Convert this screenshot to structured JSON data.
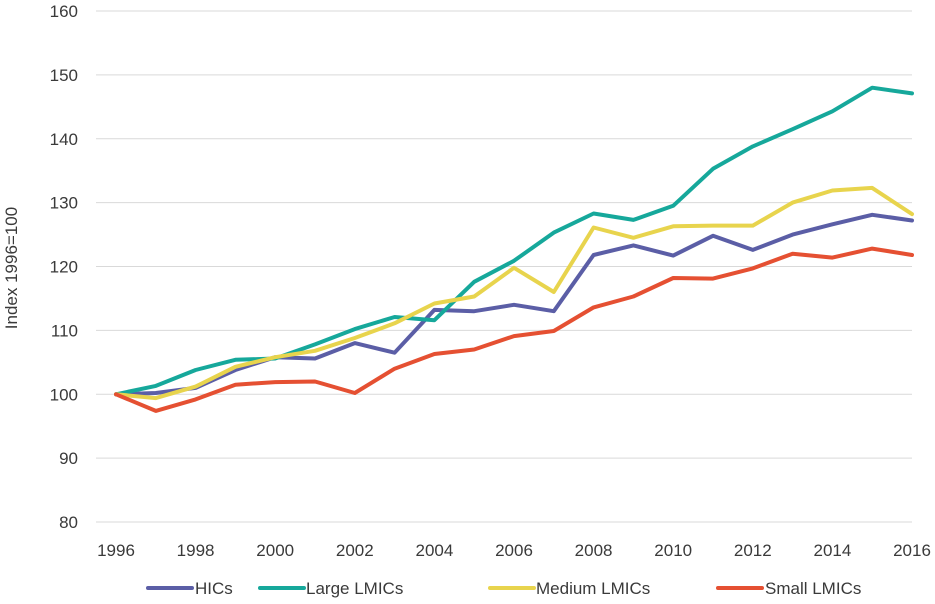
{
  "chart_data": {
    "type": "line",
    "title": "",
    "xlabel": "",
    "ylabel": "Index 1996=100",
    "ylim": [
      80,
      160
    ],
    "xlim": [
      1996,
      2016
    ],
    "grid": true,
    "legend_position": "bottom",
    "x": [
      1996,
      1997,
      1998,
      1999,
      2000,
      2001,
      2002,
      2003,
      2004,
      2005,
      2006,
      2007,
      2008,
      2009,
      2010,
      2011,
      2012,
      2013,
      2014,
      2015,
      2016
    ],
    "x_ticks": [
      1996,
      1998,
      2000,
      2002,
      2004,
      2006,
      2008,
      2010,
      2012,
      2014,
      2016
    ],
    "y_ticks": [
      80,
      90,
      100,
      110,
      120,
      130,
      140,
      150,
      160
    ],
    "series": [
      {
        "name": "HICs",
        "color": "#5b5ea6",
        "values": [
          100,
          100.2,
          101.0,
          103.8,
          105.8,
          105.6,
          108.0,
          106.5,
          113.2,
          113.0,
          114.0,
          113.0,
          121.8,
          123.3,
          121.7,
          124.8,
          122.6,
          125.0,
          126.6,
          128.1,
          127.2
        ]
      },
      {
        "name": "Large LMICs",
        "color": "#16a89b",
        "values": [
          100,
          101.3,
          103.8,
          105.4,
          105.6,
          107.8,
          110.2,
          112.1,
          111.6,
          117.6,
          120.9,
          125.3,
          128.3,
          127.3,
          129.5,
          135.3,
          138.8,
          141.5,
          144.3,
          148.0,
          147.1
        ]
      },
      {
        "name": "Medium LMICs",
        "color": "#e8d44d",
        "values": [
          100,
          99.4,
          101.2,
          104.3,
          105.8,
          106.8,
          108.8,
          111.1,
          114.2,
          115.3,
          119.8,
          116.0,
          126.1,
          124.5,
          126.3,
          126.4,
          126.4,
          130.0,
          131.9,
          132.3,
          128.2
        ]
      },
      {
        "name": "Small LMICs",
        "color": "#e55032",
        "values": [
          100,
          97.4,
          99.2,
          101.5,
          101.9,
          102.0,
          100.2,
          104.0,
          106.3,
          107.0,
          109.1,
          109.9,
          113.6,
          115.3,
          118.2,
          118.1,
          119.7,
          122.0,
          121.4,
          122.8,
          121.8
        ]
      }
    ]
  }
}
